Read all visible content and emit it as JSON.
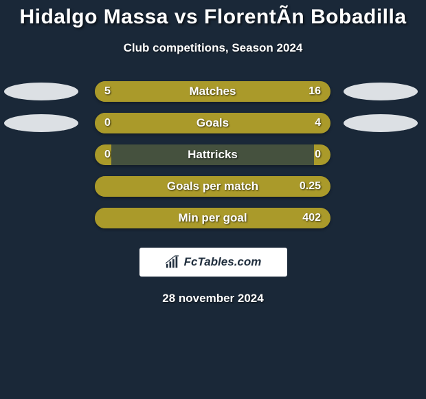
{
  "header": {
    "title": "Hidalgo Massa vs FlorentÃ­n Bobadilla",
    "subtitle": "Club competitions, Season 2024"
  },
  "stats": [
    {
      "label": "Matches",
      "left_value": "5",
      "right_value": "16",
      "left_fill_pct": 23,
      "right_fill_pct": 0,
      "show_left_ellipse": true,
      "show_right_ellipse": true,
      "bar_bg": "#aa9a2a",
      "left_fill_color": "#aa9a2a",
      "right_fill_color": "#aa9a2a"
    },
    {
      "label": "Goals",
      "left_value": "0",
      "right_value": "4",
      "left_fill_pct": 7,
      "right_fill_pct": 0,
      "show_left_ellipse": true,
      "show_right_ellipse": true,
      "bar_bg": "#aa9a2a",
      "left_fill_color": "#aa9a2a",
      "right_fill_color": "#aa9a2a"
    },
    {
      "label": "Hattricks",
      "left_value": "0",
      "right_value": "0",
      "left_fill_pct": 7,
      "right_fill_pct": 7,
      "show_left_ellipse": false,
      "show_right_ellipse": false,
      "bar_bg": "#45513e",
      "left_fill_color": "#aa9a2a",
      "right_fill_color": "#aa9a2a"
    },
    {
      "label": "Goals per match",
      "left_value": "",
      "right_value": "0.25",
      "left_fill_pct": 4,
      "right_fill_pct": 0,
      "show_left_ellipse": false,
      "show_right_ellipse": false,
      "bar_bg": "#aa9a2a",
      "left_fill_color": "#aa9a2a",
      "right_fill_color": "#aa9a2a"
    },
    {
      "label": "Min per goal",
      "left_value": "",
      "right_value": "402",
      "left_fill_pct": 4,
      "right_fill_pct": 0,
      "show_left_ellipse": false,
      "show_right_ellipse": false,
      "bar_bg": "#aa9a2a",
      "left_fill_color": "#aa9a2a",
      "right_fill_color": "#aa9a2a"
    }
  ],
  "footer": {
    "logo_text": "FcTables.com",
    "date": "28 november 2024"
  },
  "colors": {
    "page_bg": "#1a2838",
    "bar_accent": "#aa9a2a",
    "bar_dark": "#45513e",
    "ellipse": "#dce0e4",
    "text": "#ffffff"
  }
}
